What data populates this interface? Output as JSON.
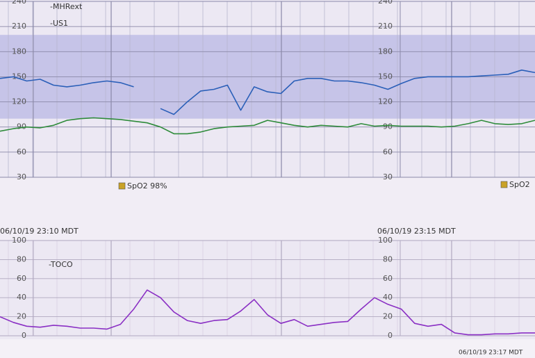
{
  "chart_data": [
    {
      "type": "line",
      "series": [
        {
          "name": "-MHRext",
          "color": "#2e8b3a",
          "values": [
            85,
            88,
            90,
            89,
            92,
            98,
            100,
            101,
            100,
            99,
            97,
            95,
            90,
            82,
            82,
            84,
            88,
            90,
            91,
            92,
            98,
            95,
            92,
            90,
            92,
            91,
            90,
            94,
            91,
            92,
            91,
            91,
            91,
            90,
            91,
            94,
            98,
            94,
            93,
            94,
            98
          ]
        },
        {
          "name": "-US1",
          "color": "#2a5fb8",
          "values": [
            148,
            150,
            145,
            147,
            140,
            138,
            140,
            143,
            145,
            143,
            138,
            null,
            112,
            105,
            120,
            133,
            135,
            140,
            110,
            138,
            132,
            130,
            145,
            148,
            148,
            145,
            145,
            143,
            140,
            135,
            142,
            148,
            150,
            150,
            150,
            150,
            151,
            152,
            153,
            158,
            155
          ]
        }
      ],
      "ylim": [
        30,
        240
      ],
      "yticks": [
        30,
        60,
        90,
        120,
        150,
        180,
        210,
        240
      ],
      "shaded_range": [
        100,
        200
      ],
      "grid": true,
      "annotations": [
        "SpO2  98%",
        "SpO2"
      ]
    },
    {
      "type": "line",
      "series": [
        {
          "name": "-TOCO",
          "color": "#8a2fc4",
          "values": [
            20,
            14,
            10,
            9,
            11,
            10,
            8,
            8,
            7,
            12,
            28,
            48,
            40,
            25,
            16,
            13,
            16,
            17,
            26,
            38,
            22,
            13,
            17,
            10,
            12,
            14,
            15,
            28,
            40,
            33,
            28,
            13,
            10,
            12,
            3,
            1,
            1,
            2,
            2,
            3,
            3
          ]
        }
      ],
      "ylim": [
        0,
        100
      ],
      "yticks": [
        0,
        20,
        40,
        60,
        80,
        100
      ],
      "grid": true,
      "annotations": [
        "06/10/19 23:10 MDT",
        "06/10/19 23:15 MDT",
        "06/10/19 23:17 MDT"
      ]
    }
  ]
}
